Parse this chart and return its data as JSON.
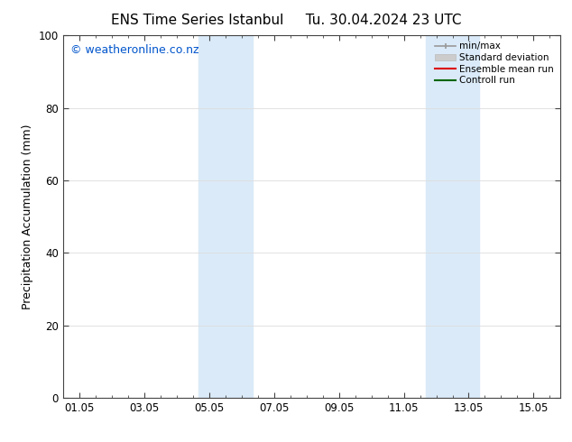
{
  "title_left": "ENS Time Series Istanbul",
  "title_right": "Tu. 30.04.2024 23 UTC",
  "ylabel": "Precipitation Accumulation (mm)",
  "ylim": [
    0,
    100
  ],
  "yticks": [
    0,
    20,
    40,
    60,
    80,
    100
  ],
  "xtick_labels": [
    "01.05",
    "03.05",
    "05.05",
    "07.05",
    "09.05",
    "11.05",
    "13.05",
    "15.05"
  ],
  "xtick_positions": [
    0,
    2,
    4,
    6,
    8,
    10,
    12,
    14
  ],
  "xmin": -0.5,
  "xmax": 14.83,
  "shaded_bands": [
    {
      "x_start": 3.67,
      "x_end": 5.33,
      "color": "#daeaf8"
    },
    {
      "x_start": 10.67,
      "x_end": 12.33,
      "color": "#daeaf8"
    }
  ],
  "watermark_text": "© weatheronline.co.nz",
  "watermark_color": "#0055cc",
  "background_color": "#ffffff",
  "plot_bg_color": "#f5f5f5",
  "title_fontsize": 11,
  "axis_fontsize": 9,
  "tick_fontsize": 8.5,
  "watermark_fontsize": 9
}
